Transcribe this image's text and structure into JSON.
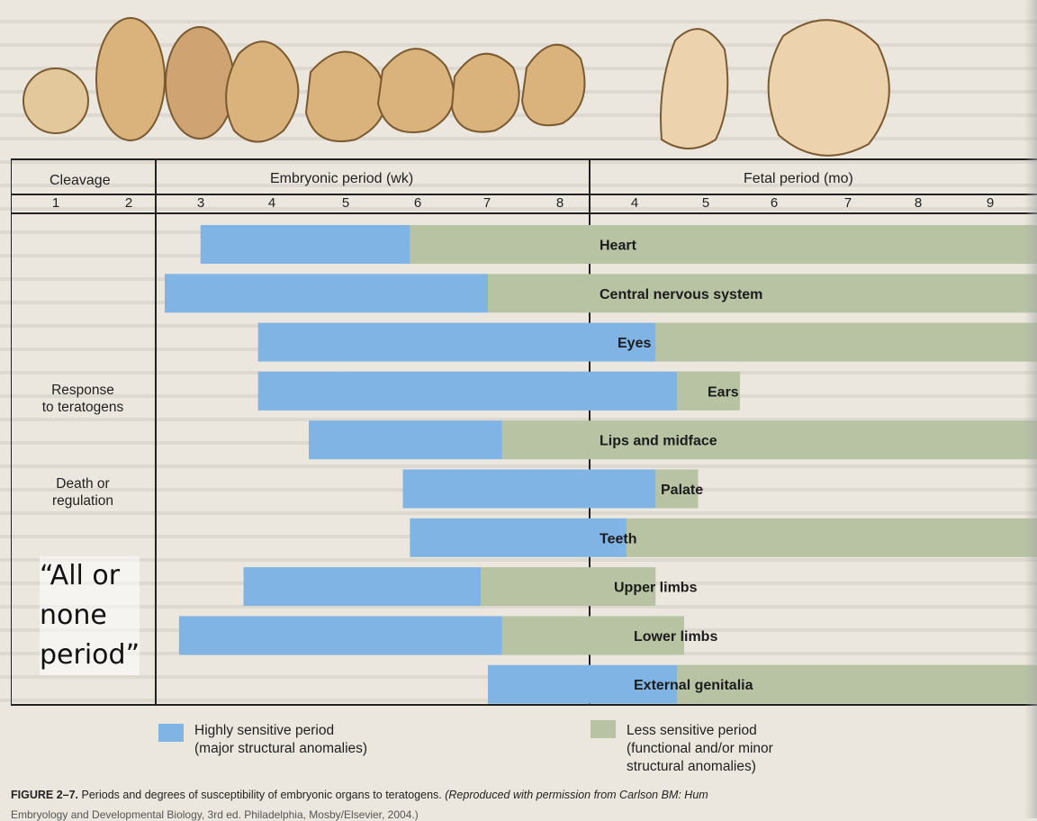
{
  "header": {
    "cleavage": "Cleavage",
    "embryonic": "Embryonic period (wk)",
    "fetal": "Fetal period (mo)"
  },
  "left_column": {
    "response": "Response\nto teratogens",
    "death": "Death or\nregulation",
    "all_or_none": "“All or\nnone\nperiod”"
  },
  "legend": {
    "highly": "Highly sensitive period\n(major structural anomalies)",
    "less": "Less sensitive period\n(functional and/or minor\nstructural anomalies)",
    "colors": {
      "highly": "#7fb4e4",
      "less": "#b7c3a3"
    }
  },
  "caption": {
    "figure_label": "FIGURE 2–7.",
    "text": "Periods and degrees of susceptibility of embryonic organs to teratogens.",
    "credit": "(Reproduced with permission from Carlson BM: Hum",
    "credit2": "Embryology and Developmental Biology, 3rd ed. Philadelphia, Mosby/Elsevier, 2004.)"
  },
  "chart_data": {
    "type": "bar",
    "x_ticks": [
      "1",
      "2",
      "3",
      "4",
      "5",
      "6",
      "7",
      "8",
      "4",
      "5",
      "6",
      "7",
      "8",
      "9"
    ],
    "x_units": "Cleavage (wk 1–2), Embryonic period (wk 3–8), Fetal period (mo 4–9)",
    "series": [
      {
        "name": "Heart",
        "highly": [
          2.5,
          5.4
        ],
        "less": [
          5.4,
          14.5
        ]
      },
      {
        "name": "Central nervous system",
        "highly": [
          2.0,
          6.5
        ],
        "less": [
          6.5,
          14.5
        ]
      },
      {
        "name": "Eyes",
        "highly": [
          3.3,
          8.8
        ],
        "less": [
          8.8,
          14.5
        ]
      },
      {
        "name": "Ears",
        "highly": [
          3.3,
          9.1
        ],
        "less": [
          9.1,
          10.0
        ]
      },
      {
        "name": "Lips and midface",
        "highly": [
          4.0,
          6.7
        ],
        "less": [
          6.7,
          14.5
        ]
      },
      {
        "name": "Palate",
        "highly": [
          5.3,
          8.8
        ],
        "less": [
          8.8,
          9.4
        ]
      },
      {
        "name": "Teeth",
        "highly": [
          5.4,
          8.4
        ],
        "less": [
          8.4,
          14.5
        ]
      },
      {
        "name": "Upper limbs",
        "highly": [
          3.1,
          6.4
        ],
        "less": [
          6.4,
          8.8
        ]
      },
      {
        "name": "Lower limbs",
        "highly": [
          2.2,
          6.7
        ],
        "less": [
          6.7,
          9.2
        ]
      },
      {
        "name": "External genitalia",
        "highly": [
          6.5,
          9.1
        ],
        "less": [
          9.1,
          14.5
        ]
      }
    ]
  }
}
